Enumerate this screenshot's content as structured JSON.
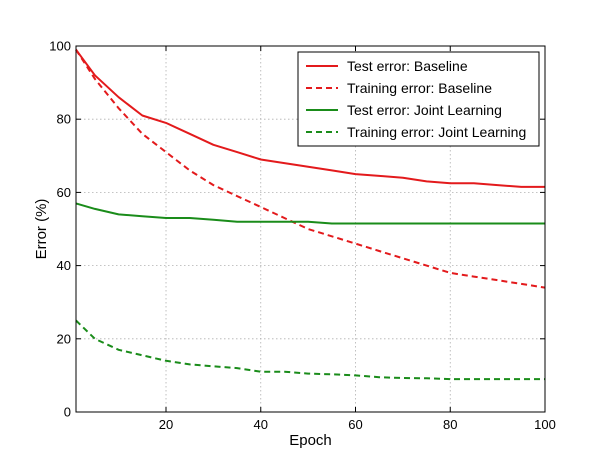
{
  "chart_data": {
    "type": "line",
    "title": "",
    "xlabel": "Epoch",
    "ylabel": "Error (%)",
    "xlim": [
      1,
      100
    ],
    "ylim": [
      0,
      100
    ],
    "xticks": [
      20,
      40,
      60,
      80,
      100
    ],
    "yticks": [
      0,
      20,
      40,
      60,
      80,
      100
    ],
    "grid": true,
    "legend_position": "top-right",
    "series": [
      {
        "name": "Test error: Baseline",
        "color": "#e31a1c",
        "dash": "solid",
        "x": [
          1,
          5,
          10,
          15,
          20,
          25,
          30,
          35,
          40,
          45,
          50,
          55,
          60,
          65,
          70,
          75,
          80,
          85,
          90,
          95,
          100
        ],
        "y": [
          99,
          92,
          86,
          81,
          79,
          76,
          73,
          71,
          69,
          68,
          67,
          66,
          65,
          64.5,
          64,
          63,
          62.5,
          62.5,
          62,
          61.5,
          61.5
        ]
      },
      {
        "name": "Training error: Baseline",
        "color": "#e31a1c",
        "dash": "dashed",
        "x": [
          1,
          5,
          10,
          15,
          20,
          25,
          30,
          35,
          40,
          45,
          50,
          55,
          60,
          65,
          70,
          75,
          80,
          85,
          90,
          95,
          100
        ],
        "y": [
          99,
          91,
          83,
          76,
          71,
          66,
          62,
          59,
          56,
          53,
          50,
          48,
          46,
          44,
          42,
          40,
          38,
          37,
          36,
          35,
          34
        ]
      },
      {
        "name": "Test error: Joint Learning",
        "color": "#1a8c1a",
        "dash": "solid",
        "x": [
          1,
          5,
          10,
          15,
          20,
          25,
          30,
          35,
          40,
          45,
          50,
          55,
          60,
          65,
          70,
          75,
          80,
          85,
          90,
          95,
          100
        ],
        "y": [
          57,
          55.5,
          54,
          53.5,
          53,
          53,
          52.5,
          52,
          52,
          52,
          52,
          51.5,
          51.5,
          51.5,
          51.5,
          51.5,
          51.5,
          51.5,
          51.5,
          51.5,
          51.5
        ]
      },
      {
        "name": "Training error: Joint Learning",
        "color": "#1a8c1a",
        "dash": "dashed",
        "x": [
          1,
          5,
          10,
          15,
          20,
          25,
          30,
          35,
          40,
          45,
          50,
          55,
          60,
          65,
          70,
          75,
          80,
          85,
          90,
          95,
          100
        ],
        "y": [
          25,
          20,
          17,
          15.5,
          14,
          13,
          12.5,
          12,
          11,
          11,
          10.5,
          10.3,
          10,
          9.5,
          9.3,
          9.2,
          9,
          9,
          9,
          9,
          9
        ]
      }
    ]
  }
}
